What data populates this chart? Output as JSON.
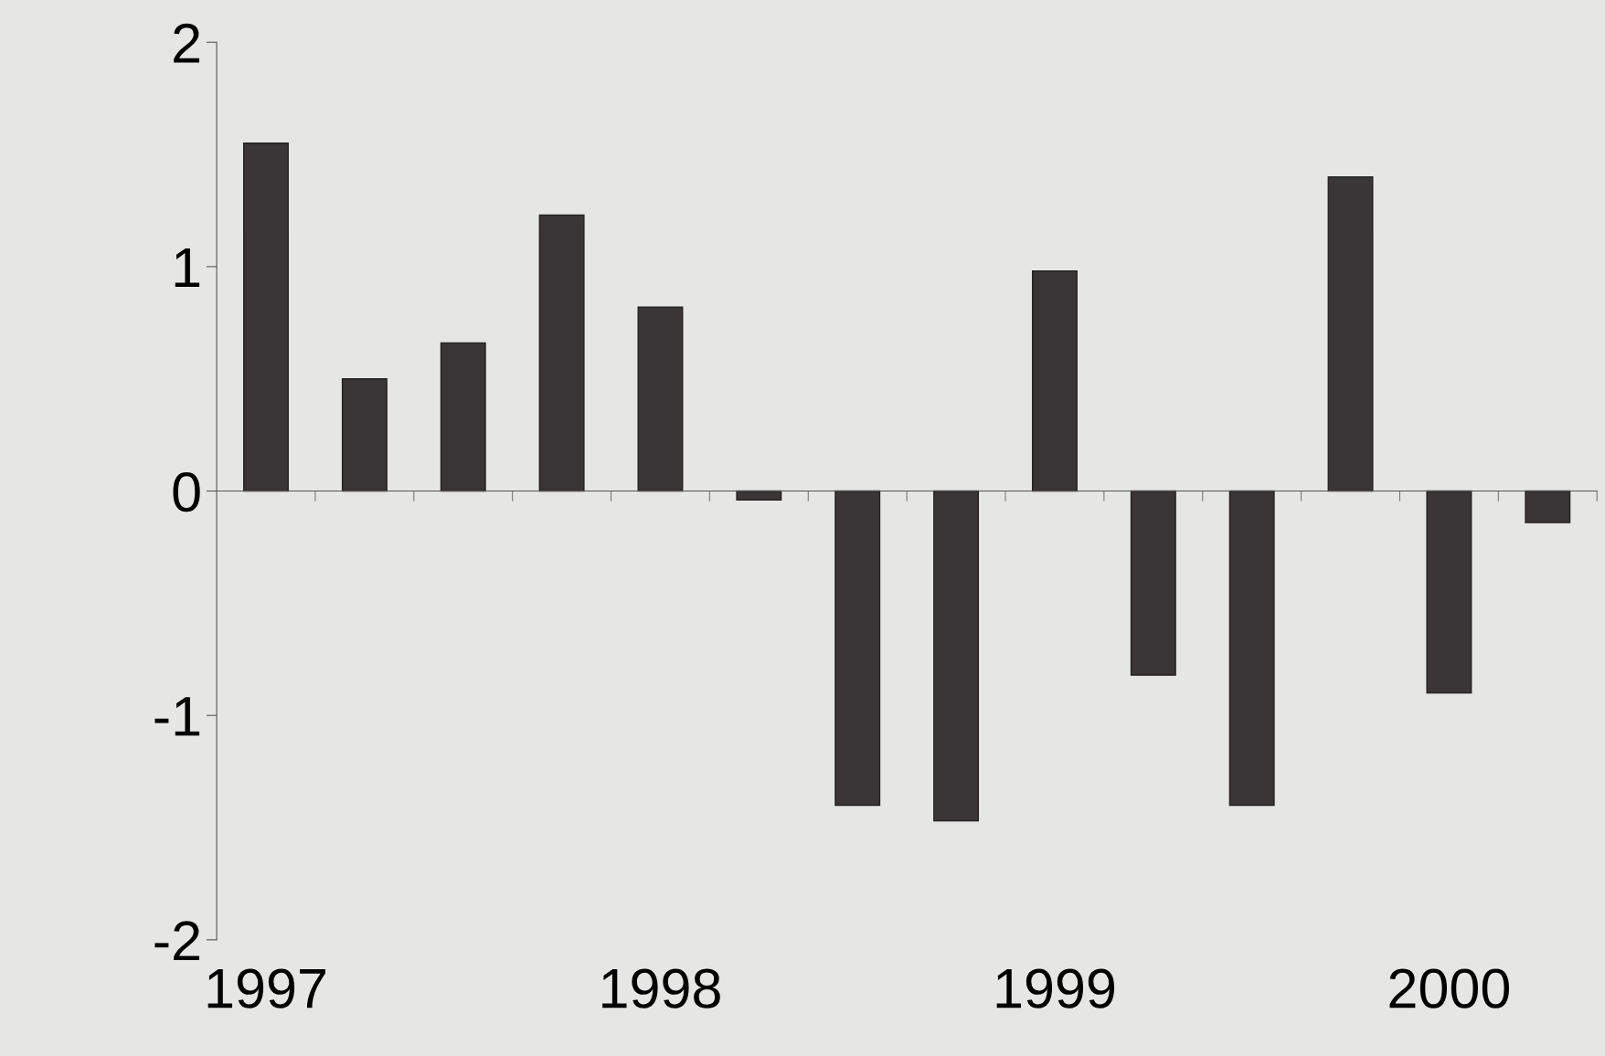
{
  "chart_data": {
    "type": "bar",
    "categories": [
      "1997",
      null,
      null,
      null,
      "1998",
      null,
      null,
      null,
      "1999",
      null,
      null,
      null,
      "2000",
      null
    ],
    "values": [
      1.55,
      0.5,
      0.66,
      1.23,
      0.82,
      -0.04,
      -1.4,
      -1.47,
      0.98,
      -0.82,
      -1.4,
      1.4,
      -0.9,
      -0.14
    ],
    "color": "#3a3536",
    "ylim": [
      -2,
      2
    ],
    "yticks": [
      -2,
      -1,
      0,
      1,
      2
    ]
  }
}
